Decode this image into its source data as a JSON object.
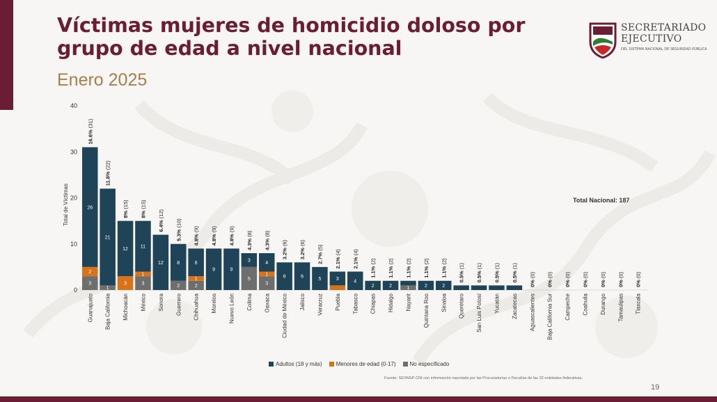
{
  "page": {
    "title": "Víctimas mujeres de homicidio doloso por grupo de edad a nivel nacional",
    "subtitle": "Enero 2025",
    "page_number": "19",
    "source": "Fuente: SESNSP-CNI con información reportada por las Procuradurías o Fiscalías de las 32 entidades federativas.",
    "total_label": "Total Nacional: 187",
    "logo": {
      "line1": "SECRETARIADO",
      "line2": "EJECUTIVO",
      "line3": "DEL SISTEMA NACIONAL DE SEGURIDAD PÚBLICA"
    },
    "colors": {
      "brand": "#6b1d36",
      "gold": "#a57f4a",
      "adultos": "#1f4457",
      "menores": "#d9731a",
      "no_especificado": "#6e6e6e"
    }
  },
  "chart_data": {
    "type": "bar",
    "stacked": true,
    "ylabel": "Total de Víctimas",
    "ylim": [
      0,
      40
    ],
    "yticks": [
      0,
      10,
      20,
      30,
      40
    ],
    "grid": false,
    "legend_position": "bottom",
    "categories": [
      "Guanajuato",
      "Baja California",
      "Michoacán",
      "México",
      "Sonora",
      "Guerrero",
      "Chihuahua",
      "Morelos",
      "Nuevo León",
      "Colima",
      "Oaxaca",
      "Ciudad de México",
      "Jalisco",
      "Veracruz",
      "Puebla",
      "Tabasco",
      "Chiapas",
      "Hidalgo",
      "Nayarit",
      "Quintana Roo",
      "Sinaloa",
      "Querétaro",
      "San Luis Potosí",
      "Yucatán",
      "Zacatecas",
      "Aguascalientes",
      "Baja California Sur",
      "Campeche",
      "Coahuila",
      "Durango",
      "Tamaulipas",
      "Tlaxcala"
    ],
    "series": [
      {
        "name": "Adultos (18 y más)",
        "key": "adultos",
        "values": [
          26,
          21,
          12,
          11,
          12,
          8,
          6,
          9,
          9,
          3,
          4,
          6,
          6,
          5,
          3,
          4,
          2,
          2,
          1,
          2,
          2,
          1,
          1,
          1,
          1,
          0,
          0,
          0,
          0,
          0,
          0,
          0
        ],
        "labels": [
          "26",
          "21",
          "12",
          "11",
          "12",
          "8",
          "6",
          "9",
          "9",
          "3",
          "4",
          "6",
          "6",
          "5",
          "3",
          "4",
          "2",
          "2",
          "",
          "2",
          "2",
          "",
          "",
          "",
          "",
          "",
          "",
          "",
          "",
          "",
          "",
          ""
        ]
      },
      {
        "name": "Menores de edad (0-17)",
        "key": "menores",
        "values": [
          2,
          0,
          3,
          1,
          0,
          0,
          1,
          0,
          0,
          0,
          1,
          0,
          0,
          0,
          1,
          0,
          0,
          0,
          0,
          0,
          0,
          0,
          0,
          0,
          0,
          0,
          0,
          0,
          0,
          0,
          0,
          0
        ],
        "labels": [
          "2",
          "",
          "3",
          "1",
          "",
          "",
          "1",
          "",
          "",
          "",
          "1",
          "",
          "",
          "",
          "",
          "",
          "",
          "",
          "",
          "",
          "",
          "",
          "",
          "",
          "",
          "",
          "",
          "",
          "",
          "",
          "",
          ""
        ]
      },
      {
        "name": "No especificado",
        "key": "no_especificado",
        "values": [
          3,
          1,
          0,
          3,
          0,
          2,
          2,
          0,
          0,
          5,
          3,
          0,
          0,
          0,
          0,
          0,
          0,
          0,
          1,
          0,
          0,
          0,
          0,
          0,
          0,
          0,
          0,
          0,
          0,
          0,
          0,
          0
        ],
        "labels": [
          "3",
          "1",
          "",
          "3",
          "",
          "2",
          "2",
          "",
          "",
          "5",
          "3",
          "",
          "",
          "",
          "",
          "",
          "",
          "",
          "1",
          "",
          "",
          "",
          "",
          "",
          "",
          "",
          "",
          "",
          "",
          "",
          "",
          ""
        ]
      }
    ],
    "annotations": {
      "pct": [
        "16.6%",
        "11.8%",
        "8%",
        "8%",
        "6.4%",
        "5.3%",
        "4.8%",
        "4.8%",
        "4.8%",
        "4.3%",
        "4.3%",
        "3.2%",
        "3.2%",
        "2.7%",
        "2.1%",
        "2.1%",
        "1.1%",
        "1.1%",
        "1.1%",
        "1.1%",
        "1.1%",
        "0.5%",
        "0.5%",
        "0.5%",
        "0.5%",
        "0%",
        "0%",
        "0%",
        "0%",
        "0%",
        "0%",
        "0%"
      ],
      "totals": [
        "(31)",
        "(22)",
        "(15)",
        "(15)",
        "(12)",
        "(10)",
        "(9)",
        "(9)",
        "(9)",
        "(8)",
        "(8)",
        "(6)",
        "(6)",
        "(5)",
        "(4)",
        "(4)",
        "(2)",
        "(2)",
        "(2)",
        "(2)",
        "(2)",
        "(1)",
        "(1)",
        "(1)",
        "(1)",
        "(0)",
        "(0)",
        "(0)",
        "(0)",
        "(0)",
        "(0)",
        "(0)"
      ]
    }
  }
}
